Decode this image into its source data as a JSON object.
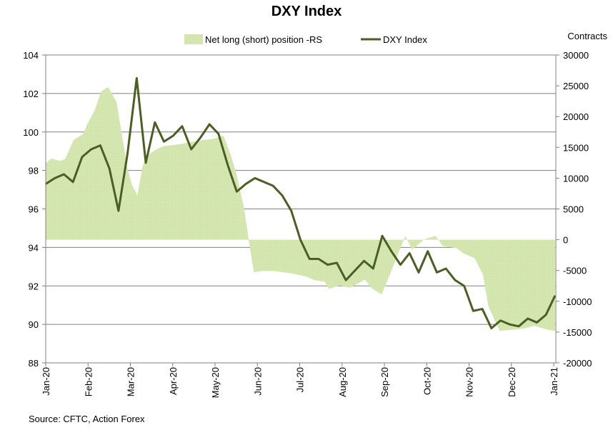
{
  "chart_data": {
    "type": "line",
    "title": "DXY Index",
    "source": "Source: CFTC, Action Forex",
    "right_axis_title": "Contracts",
    "legend": [
      {
        "name": "Net long (short) position -RS",
        "kind": "area",
        "color": "#d5e6b4"
      },
      {
        "name": "DXY Index",
        "kind": "line",
        "color": "#4b5e25"
      }
    ],
    "legend_placement": "top-center",
    "grid": true,
    "x_range_days": [
      0,
      367
    ],
    "x_tick_labels": [
      "Jan-20",
      "Feb-20",
      "Mar-20",
      "Apr-20",
      "May-20",
      "Jun-20",
      "Jul-20",
      "Aug-20",
      "Sep-20",
      "Oct-20",
      "Nov-20",
      "Dec-20",
      "Jan-21",
      "Jan-21"
    ],
    "x_tick_days": [
      0,
      30.5,
      61,
      91.5,
      122,
      152.5,
      183,
      213.5,
      244,
      274.5,
      305,
      335.5,
      366
    ],
    "x_tick_labels_shown": [
      "Jan-20",
      "Feb-20",
      "Mar-20",
      "Apr-20",
      "May-20",
      "Jun-20",
      "Jul-20",
      "Aug-20",
      "Sep-20",
      "Oct-20",
      "Nov-20",
      "Dec-20",
      "Jan-21"
    ],
    "extra_last_label": "Jan-21",
    "left_axis": {
      "min": 88,
      "max": 104,
      "step": 2,
      "ticks": [
        "88",
        "90",
        "92",
        "94",
        "96",
        "98",
        "100",
        "102",
        "104"
      ]
    },
    "right_axis": {
      "min": -20000,
      "max": 30000,
      "step": 5000,
      "ticks": [
        "-20000",
        "-15000",
        "-10000",
        "-5000",
        "0",
        "5000",
        "10000",
        "15000",
        "20000",
        "25000",
        "30000"
      ]
    },
    "series": [
      {
        "name": "DXY Index",
        "axis": "left",
        "values": [
          97.3,
          97.6,
          97.8,
          97.4,
          98.7,
          99.1,
          99.3,
          98.1,
          95.9,
          98.9,
          102.8,
          98.4,
          100.5,
          99.5,
          99.8,
          100.3,
          99.1,
          99.7,
          100.4,
          99.9,
          98.3,
          96.9,
          97.3,
          97.6,
          97.4,
          97.2,
          96.7,
          95.9,
          94.4,
          93.4,
          93.4,
          93.1,
          93.2,
          92.3,
          92.8,
          93.3,
          92.9,
          94.6,
          93.8,
          93.1,
          93.7,
          92.7,
          93.8,
          92.7,
          92.9,
          92.3,
          92.0,
          90.7,
          90.8,
          89.8,
          90.2,
          90.0,
          89.9,
          90.3,
          90.1,
          90.5,
          91.5
        ]
      },
      {
        "name": "Net long (short) position -RS",
        "axis": "right",
        "days": [
          0,
          4,
          10,
          14,
          20,
          27,
          30,
          35,
          40,
          45,
          51,
          55,
          59,
          62,
          66,
          70,
          74,
          79,
          85,
          96,
          103,
          111,
          121,
          128,
          132,
          137,
          143,
          147,
          150,
          155,
          165,
          178,
          188,
          194,
          201,
          204,
          212,
          219,
          230,
          235,
          242,
          249,
          259,
          264,
          273,
          281,
          286,
          296,
          301,
          309,
          315,
          319,
          327,
          337,
          345,
          352,
          363,
          367
        ],
        "values": [
          12400,
          13200,
          12800,
          13100,
          16200,
          17200,
          18800,
          20900,
          24100,
          24800,
          22400,
          16900,
          11500,
          9000,
          7200,
          12100,
          13800,
          14600,
          15200,
          15500,
          15800,
          16100,
          16400,
          16900,
          14600,
          11100,
          5000,
          -1200,
          -5300,
          -5100,
          -5100,
          -5500,
          -6000,
          -6600,
          -6800,
          -8000,
          -7400,
          -7800,
          -6500,
          -7900,
          -8900,
          -5100,
          600,
          -1600,
          100,
          600,
          -1000,
          -1400,
          -2200,
          -3000,
          -5700,
          -10900,
          -14800,
          -14600,
          -14400,
          -14000,
          -14700,
          -14800
        ]
      }
    ]
  }
}
